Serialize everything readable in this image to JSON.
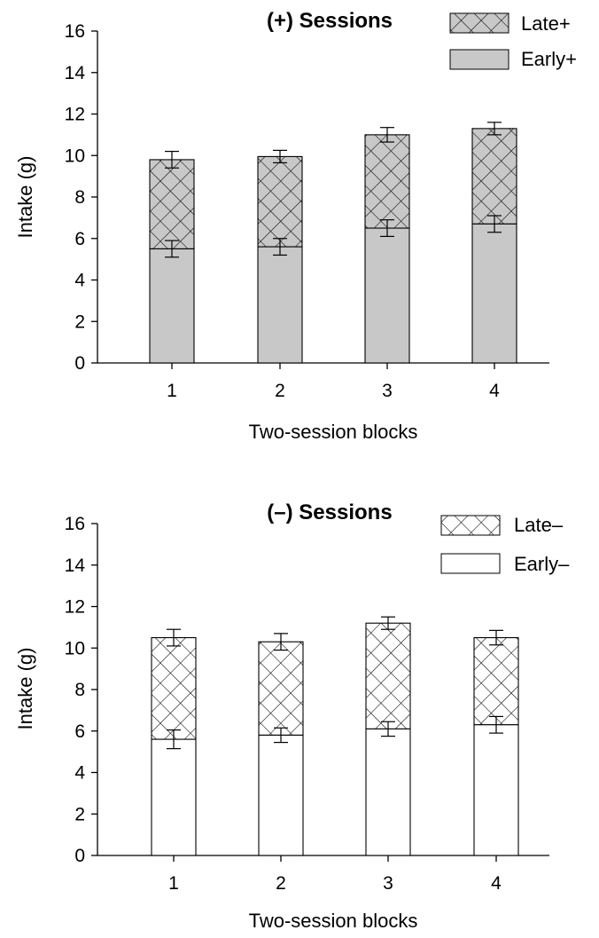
{
  "chart_data": [
    {
      "type": "bar",
      "stacked": true,
      "title": "(+) Sessions",
      "xlabel": "Two-session blocks",
      "ylabel": "Intake (g)",
      "categories": [
        "1",
        "2",
        "3",
        "4"
      ],
      "ylim": [
        0,
        16
      ],
      "yticks": [
        "0",
        "2",
        "4",
        "6",
        "8",
        "10",
        "12",
        "14",
        "16"
      ],
      "legend_position": "top-right",
      "series": [
        {
          "name": "Early+",
          "values": [
            5.5,
            5.6,
            6.5,
            6.7
          ],
          "errors": [
            0.4,
            0.4,
            0.4,
            0.4
          ],
          "fill": "#c8c8c8",
          "pattern": "solid"
        },
        {
          "name": "Late+",
          "values": [
            4.3,
            4.35,
            4.5,
            4.6
          ],
          "totals": [
            9.8,
            9.95,
            11.0,
            11.3
          ],
          "errors": [
            0.4,
            0.3,
            0.35,
            0.3
          ],
          "fill": "#c8c8c8",
          "pattern": "crosshatch"
        }
      ]
    },
    {
      "type": "bar",
      "stacked": true,
      "title": "(–) Sessions",
      "xlabel": "Two-session blocks",
      "ylabel": "Intake (g)",
      "categories": [
        "1",
        "2",
        "3",
        "4"
      ],
      "ylim": [
        0,
        16
      ],
      "yticks": [
        "0",
        "2",
        "4",
        "6",
        "8",
        "10",
        "12",
        "14",
        "16"
      ],
      "legend_position": "top-right",
      "series": [
        {
          "name": "Early–",
          "values": [
            5.6,
            5.8,
            6.1,
            6.3
          ],
          "errors": [
            0.45,
            0.35,
            0.35,
            0.4
          ],
          "fill": "#ffffff",
          "pattern": "solid"
        },
        {
          "name": "Late–",
          "values": [
            4.9,
            4.5,
            5.1,
            4.2
          ],
          "totals": [
            10.5,
            10.3,
            11.2,
            10.5
          ],
          "errors": [
            0.4,
            0.4,
            0.3,
            0.35
          ],
          "fill": "#ffffff",
          "pattern": "crosshatch"
        }
      ]
    }
  ]
}
